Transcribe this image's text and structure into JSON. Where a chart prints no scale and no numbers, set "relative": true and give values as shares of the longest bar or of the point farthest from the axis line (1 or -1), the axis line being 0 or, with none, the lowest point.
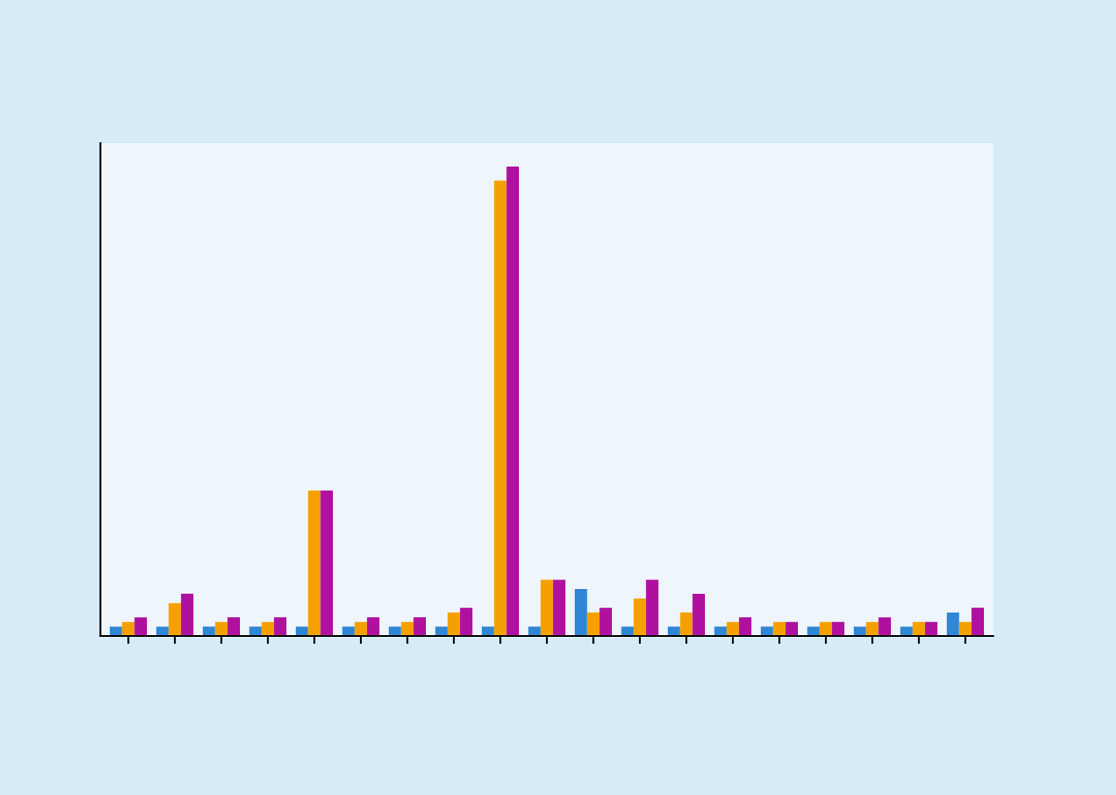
{
  "chart_data": {
    "type": "bar",
    "relative": true,
    "categories": [
      null,
      null,
      null,
      null,
      null,
      null,
      null,
      null,
      null,
      null,
      null,
      null,
      null,
      null,
      null,
      null,
      null,
      null,
      null
    ],
    "series": [
      {
        "color": "#2e86d4",
        "values": [
          0.02,
          0.02,
          0.02,
          0.02,
          0.02,
          0.02,
          0.02,
          0.02,
          0.02,
          0.02,
          0.1,
          0.02,
          0.02,
          0.02,
          0.02,
          0.02,
          0.02,
          0.02,
          0.05
        ]
      },
      {
        "color": "#f5a000",
        "values": [
          0.03,
          0.07,
          0.03,
          0.03,
          0.31,
          0.03,
          0.03,
          0.05,
          0.97,
          0.12,
          0.05,
          0.08,
          0.05,
          0.03,
          0.03,
          0.03,
          0.03,
          0.03,
          0.03
        ]
      },
      {
        "color": "#b0109e",
        "values": [
          0.04,
          0.09,
          0.04,
          0.04,
          0.31,
          0.04,
          0.04,
          0.06,
          1,
          0.12,
          0.06,
          0.12,
          0.09,
          0.04,
          0.03,
          0.03,
          0.04,
          0.03,
          0.06
        ]
      }
    ]
  }
}
